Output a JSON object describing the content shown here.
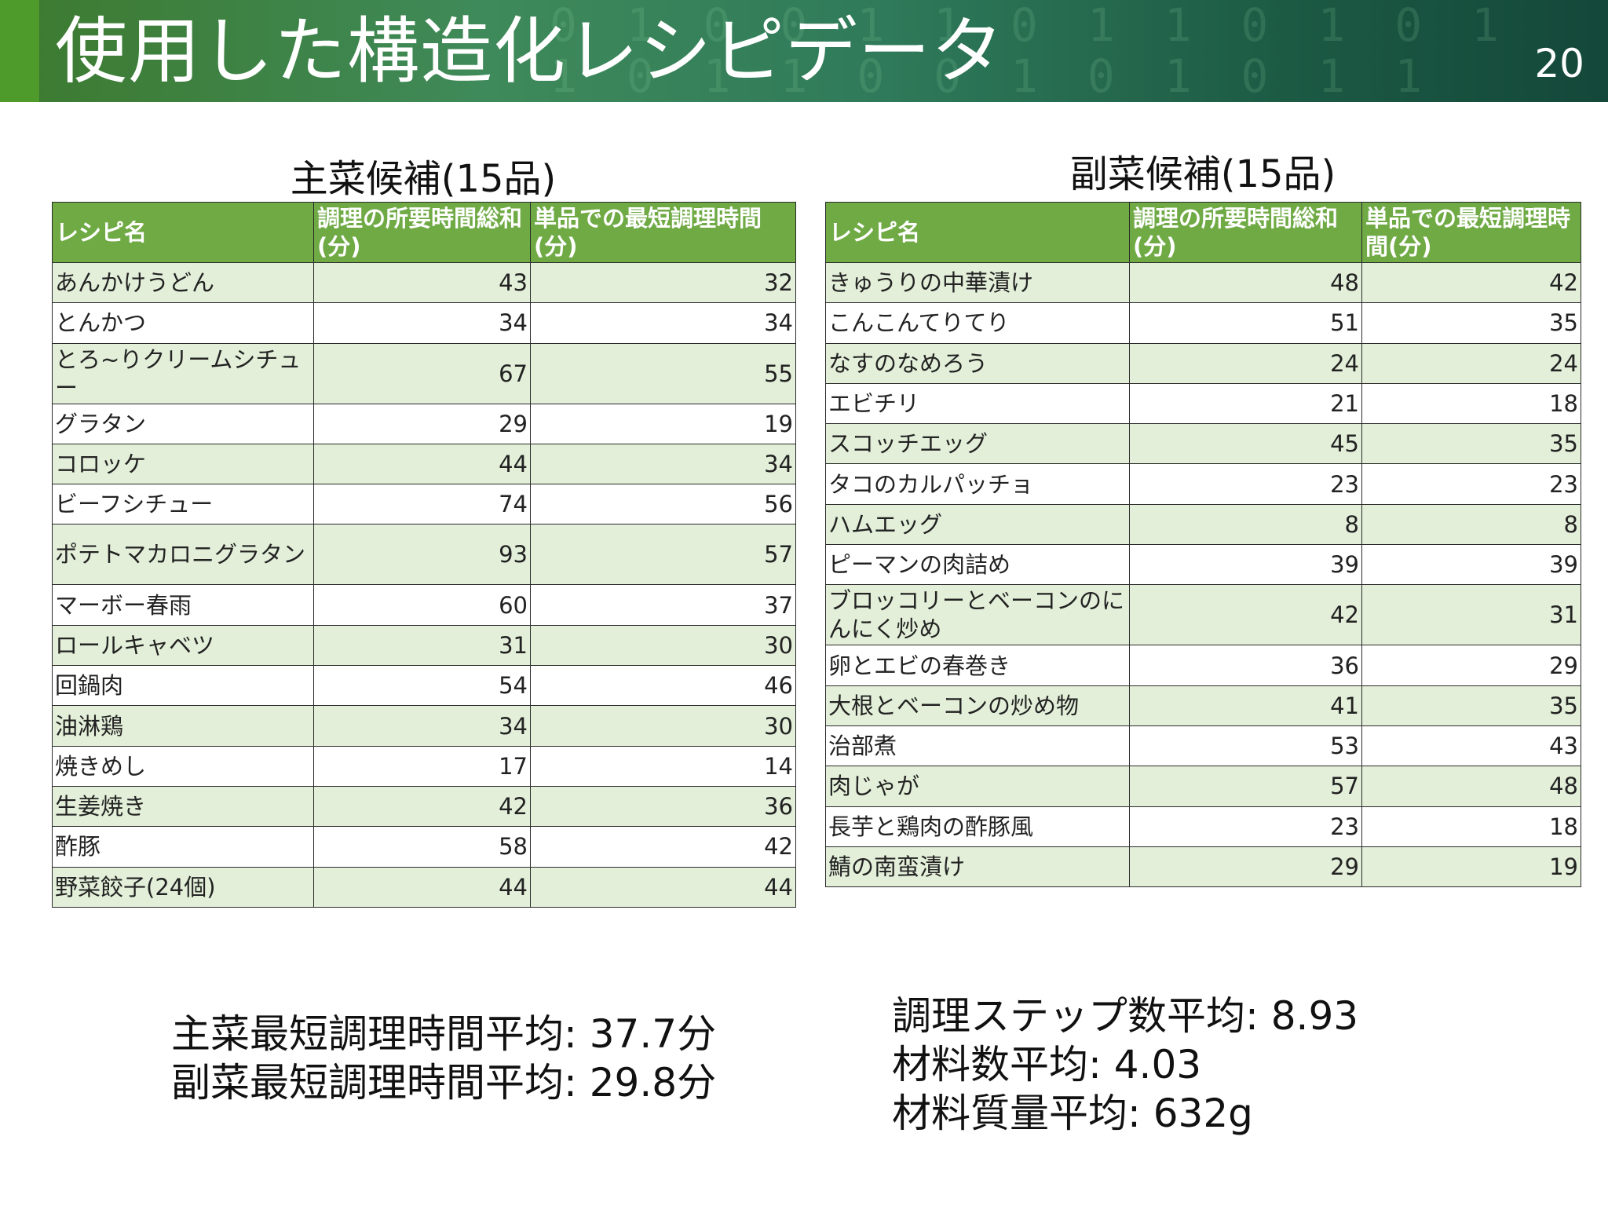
{
  "slide": {
    "title": "使用した構造化レシピデータ",
    "page_number": "20",
    "background_digits": "0 1 0 0 1 1 0 1 1 0 1 0 1\n1 0 1 1 0 0 1 0 1 0 1 1\n0 1 1 0 1 0 1 0 1 1 0 1"
  },
  "colors": {
    "header_green": "#6faa45",
    "row_tint": "#e3efd9",
    "banner_accent": "#4e9a2a"
  },
  "main_dishes": {
    "title": "主菜候補(15品)",
    "headers": [
      "レシピ名",
      "調理の所要時間総和(分)",
      "単品での最短調理時間(分)"
    ],
    "rows": [
      [
        "あんかけうどん",
        "43",
        "32"
      ],
      [
        "とんかつ",
        "34",
        "34"
      ],
      [
        "とろ~りクリームシチュー",
        "67",
        "55"
      ],
      [
        "グラタン",
        "29",
        "19"
      ],
      [
        "コロッケ",
        "44",
        "34"
      ],
      [
        "ビーフシチュー",
        "74",
        "56"
      ],
      [
        "ポテトマカロニグラタン",
        "93",
        "57"
      ],
      [
        "マーボー春雨",
        "60",
        "37"
      ],
      [
        "ロールキャベツ",
        "31",
        "30"
      ],
      [
        "回鍋肉",
        "54",
        "46"
      ],
      [
        "油淋鶏",
        "34",
        "30"
      ],
      [
        "焼きめし",
        "17",
        "14"
      ],
      [
        "生姜焼き",
        "42",
        "36"
      ],
      [
        "酢豚",
        "58",
        "42"
      ],
      [
        "野菜餃子(24個)",
        "44",
        "44"
      ]
    ]
  },
  "side_dishes": {
    "title": "副菜候補(15品)",
    "headers": [
      "レシピ名",
      "調理の所要時間総和(分)",
      "単品での最短調理時間(分)"
    ],
    "rows": [
      [
        "きゅうりの中華漬け",
        "48",
        "42"
      ],
      [
        "こんこんてりてり",
        "51",
        "35"
      ],
      [
        "なすのなめろう",
        "24",
        "24"
      ],
      [
        "エビチリ",
        "21",
        "18"
      ],
      [
        "スコッチエッグ",
        "45",
        "35"
      ],
      [
        "タコのカルパッチョ",
        "23",
        "23"
      ],
      [
        "ハムエッグ",
        "8",
        "8"
      ],
      [
        "ピーマンの肉詰め",
        "39",
        "39"
      ],
      [
        "ブロッコリーとベーコンのにんにく炒め",
        "42",
        "31"
      ],
      [
        "卵とエビの春巻き",
        "36",
        "29"
      ],
      [
        "大根とベーコンの炒め物",
        "41",
        "35"
      ],
      [
        "治部煮",
        "53",
        "43"
      ],
      [
        "肉じゃが",
        "57",
        "48"
      ],
      [
        "長芋と鶏肉の酢豚風",
        "23",
        "18"
      ],
      [
        "鯖の南蛮漬け",
        "29",
        "19"
      ]
    ]
  },
  "stats_left": [
    "主菜最短調理時間平均: 37.7分",
    "副菜最短調理時間平均: 29.8分"
  ],
  "stats_right": [
    "調理ステップ数平均: 8.93",
    "材料数平均: 4.03",
    "材料質量平均: 632g"
  ]
}
